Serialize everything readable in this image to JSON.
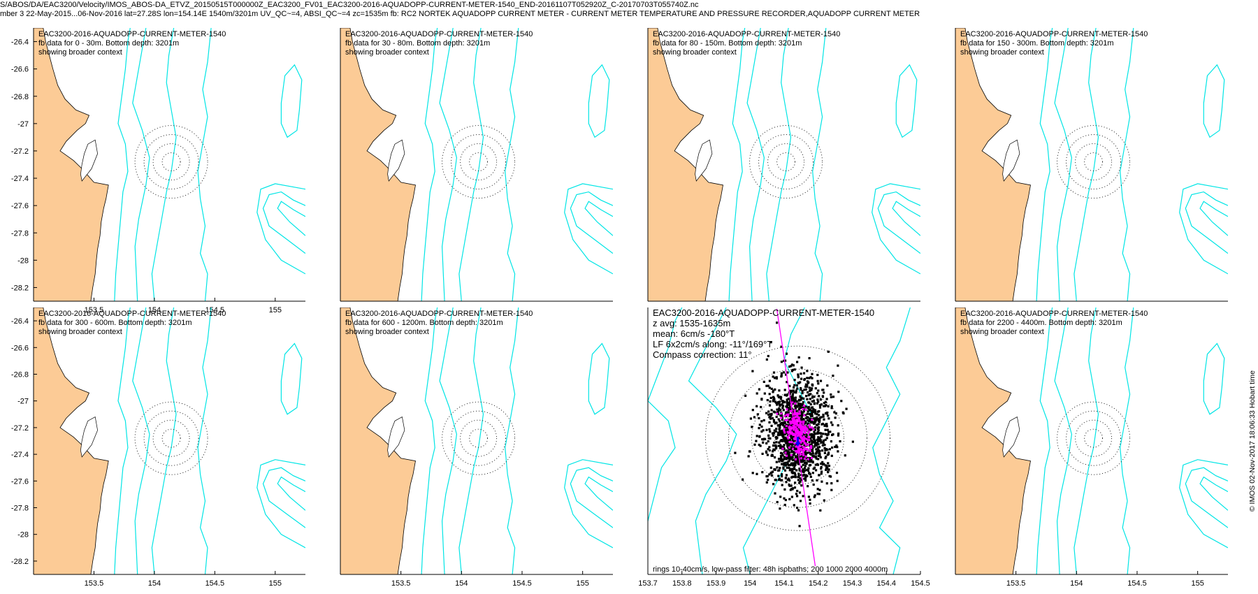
{
  "header": {
    "line1": "S/ABOS/DA/EAC3200/Velocity/IMOS_ABOS-DA_ETVZ_20150515T000000Z_EAC3200_FV01_EAC3200-2016-AQUADOPP-CURRENT-METER-1540_END-20161107T052920Z_C-20170703T055740Z.nc",
    "line2": "mber 3 22-May-2015...06-Nov-2016 lat=27.28S lon=154.14E 1540m/3201m UV_QC~=4, ABSI_QC~=4 zc=1535m fb: RC2 NORTEK AQUADOPP CURRENT METER - CURRENT METER TEMPERATURE AND PRESSURE RECORDER,AQUADOPP CURRENT METER"
  },
  "side_label": "© IMOS 02-Nov-2017 18:06:33 Hobart time",
  "colors": {
    "land": "#fccb96",
    "isobath": "#00e5e5",
    "scatter": "#000000",
    "lowpass": "#ff00ff",
    "mean": "#0000ff"
  },
  "chart_data": [
    {
      "type": "scatter",
      "title": "EAC3200-2016-AQUADOPP-CURRENT-METER-1540",
      "lines": [
        "fb data for 0 - 30m. Bottom depth: 3201m",
        "showing broader context"
      ],
      "xlim": [
        153.0,
        155.25
      ],
      "ylim": [
        -28.3,
        -26.3
      ],
      "xticks": [
        "153.5",
        "154",
        "154.5",
        "155"
      ],
      "yticks": [
        "-26.4",
        "-26.6",
        "-26.8",
        "-27",
        "-27.2",
        "-27.4",
        "-27.6",
        "-27.8",
        "-28",
        "-28.2"
      ]
    },
    {
      "type": "scatter",
      "title": "EAC3200-2016-AQUADOPP-CURRENT-METER-1540",
      "lines": [
        "fb data for 30 - 80m. Bottom depth: 3201m",
        "showing broader context"
      ],
      "xlim": [
        153.0,
        155.25
      ],
      "ylim": [
        -28.3,
        -26.3
      ],
      "xticks": [],
      "yticks": []
    },
    {
      "type": "scatter",
      "title": "EAC3200-2016-AQUADOPP-CURRENT-METER-1540",
      "lines": [
        "fb data for 80 - 150m. Bottom depth: 3201m",
        "showing broader context"
      ],
      "xlim": [
        153.0,
        155.25
      ],
      "ylim": [
        -28.3,
        -26.3
      ],
      "xticks": [],
      "yticks": []
    },
    {
      "type": "scatter",
      "title": "EAC3200-2016-AQUADOPP-CURRENT-METER-1540",
      "lines": [
        "fb data for 150 - 300m. Bottom depth: 3201m",
        "showing broader context"
      ],
      "xlim": [
        153.0,
        155.25
      ],
      "ylim": [
        -28.3,
        -26.3
      ],
      "xticks": [],
      "yticks": []
    },
    {
      "type": "scatter",
      "title": "EAC3200-2016-AQUADOPP-CURRENT-METER-1540",
      "lines": [
        "fb data for 300 - 600m. Bottom depth: 3201m",
        "showing broader context"
      ],
      "xlim": [
        153.0,
        155.25
      ],
      "ylim": [
        -28.3,
        -26.3
      ],
      "xticks": [
        "153.5",
        "154",
        "154.5",
        "155"
      ],
      "yticks": [
        "-26.4",
        "-26.6",
        "-26.8",
        "-27",
        "-27.2",
        "-27.4",
        "-27.6",
        "-27.8",
        "-28",
        "-28.2"
      ]
    },
    {
      "type": "scatter",
      "title": "EAC3200-2016-AQUADOPP-CURRENT-METER-1540",
      "lines": [
        "fb data for 600 - 1200m. Bottom depth: 3201m",
        "showing broader context"
      ],
      "xlim": [
        153.0,
        155.25
      ],
      "ylim": [
        -28.3,
        -26.3
      ],
      "xticks": [
        "153.5",
        "154",
        "154.5",
        "155"
      ],
      "yticks": []
    },
    {
      "type": "scatter",
      "title": "EAC3200-2016-AQUADOPP-CURRENT-METER-1540",
      "lines": [
        "z avg: 1535-1635m",
        "mean: 6cm/s -180°T",
        "LF 6x2cm/s along: -11°/169°T",
        "Compass correction: 11°"
      ],
      "footer": "rings 10-40cm/s, low-pass filter: 48h isobaths; 200 1000 2000 4000m",
      "xlim": [
        153.7,
        154.5
      ],
      "ylim": [
        -28.3,
        -26.3
      ],
      "xticks": [
        "153.7",
        "153.8",
        "153.9",
        "154",
        "154.1",
        "154.2",
        "154.3",
        "154.4",
        "154.5"
      ],
      "yticks": [],
      "center": [
        154.14,
        -27.28
      ]
    },
    {
      "type": "scatter",
      "title": "EAC3200-2016-AQUADOPP-CURRENT-METER-1540",
      "lines": [
        "fb data for 2200 - 4400m. Bottom depth: 3201m",
        "showing broader context"
      ],
      "xlim": [
        153.0,
        155.25
      ],
      "ylim": [
        -28.3,
        -26.3
      ],
      "xticks": [
        "153.5",
        "154",
        "154.5",
        "155"
      ],
      "yticks": []
    }
  ]
}
